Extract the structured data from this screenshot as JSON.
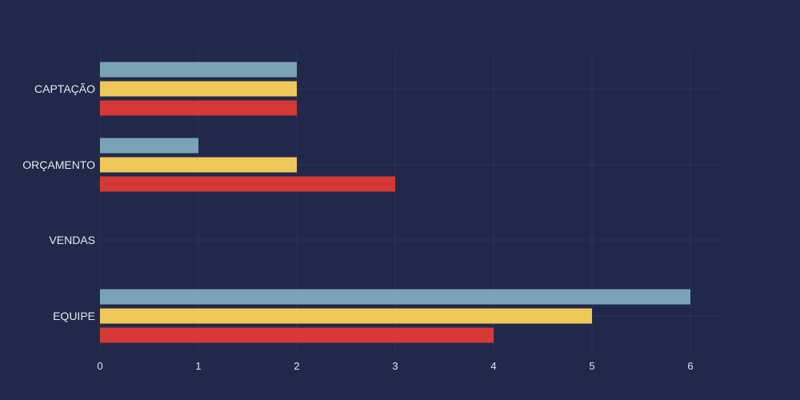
{
  "colors": {
    "background": "#212849",
    "grid": "#2c3561",
    "series_colors": [
      "#7aa2b5",
      "#f0c85a",
      "#d43935"
    ]
  },
  "chart_data": {
    "type": "bar",
    "orientation": "horizontal",
    "categories": [
      "CAPTAÇÃO",
      "ORÇAMENTO",
      "VENDAS",
      "EQUIPE"
    ],
    "series": [
      {
        "values": [
          2,
          1,
          0,
          6
        ]
      },
      {
        "values": [
          2,
          2,
          0,
          5
        ]
      },
      {
        "values": [
          2,
          3,
          0,
          4
        ]
      }
    ],
    "xticks": [
      "0",
      "1",
      "2",
      "3",
      "4",
      "5",
      "6"
    ],
    "xlim": [
      0,
      6.3
    ],
    "grid": true,
    "legend": "none"
  }
}
